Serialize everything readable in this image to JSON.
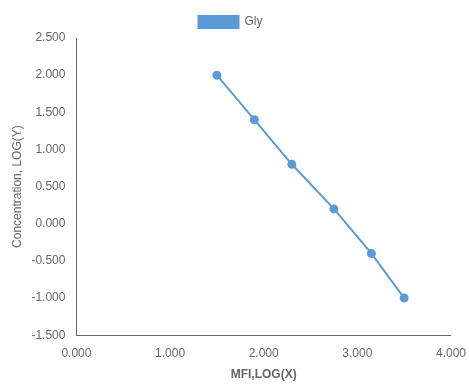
{
  "chart_data": {
    "type": "line",
    "x_label": "MFI,LOG(X)",
    "y_label": "Concentration, LOG(Y)",
    "x": [
      1.5,
      1.9,
      2.3,
      2.75,
      3.15,
      3.5
    ],
    "series": [
      {
        "name": "Gly",
        "color": "#5B9BD5",
        "marker": "o",
        "line_style": "solid",
        "values": [
          2.0,
          1.4,
          0.8,
          0.2,
          -0.4,
          -1.0
        ]
      }
    ],
    "xlim": [
      0.0,
      4.0
    ],
    "ylim": [
      -1.5,
      2.5
    ],
    "xticks": [
      {
        "value": 0.0,
        "label": "0.000"
      },
      {
        "value": 1.0,
        "label": "1.000"
      },
      {
        "value": 2.0,
        "label": "2.000"
      },
      {
        "value": 3.0,
        "label": "3.000"
      },
      {
        "value": 4.0,
        "label": "4.000"
      }
    ],
    "yticks": [
      {
        "value": -1.5,
        "label": "-1.500"
      },
      {
        "value": -1.0,
        "label": "-1.000"
      },
      {
        "value": -0.5,
        "label": "-0.500"
      },
      {
        "value": 0.0,
        "label": "0.000"
      },
      {
        "value": 0.5,
        "label": "0.500"
      },
      {
        "value": 1.0,
        "label": "1.000"
      },
      {
        "value": 1.5,
        "label": "1.500"
      },
      {
        "value": 2.0,
        "label": "2.000"
      },
      {
        "value": 2.5,
        "label": "2.500"
      }
    ],
    "grid": false,
    "legend": "top"
  }
}
